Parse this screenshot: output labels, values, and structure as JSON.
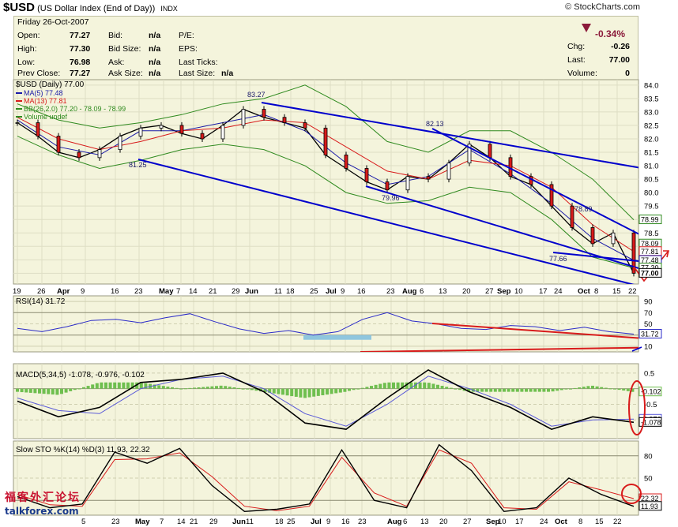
{
  "header": {
    "symbol": "$USD",
    "name": "(US Dollar Index (End of Day))",
    "exchange": "INDX",
    "brand": "© StockCharts.com"
  },
  "quote": {
    "date": "Friday  26-Oct-2007",
    "open_label": "Open:",
    "open": "77.27",
    "high_label": "High:",
    "high": "77.30",
    "low_label": "Low:",
    "low": "76.98",
    "prev_label": "Prev Close:",
    "prev": "77.27",
    "bid_label": "Bid:",
    "bid": "n/a",
    "bidsize_label": "Bid Size:",
    "bidsize": "n/a",
    "ask_label": "Ask:",
    "ask": "n/a",
    "asksize_label": "Ask Size:",
    "asksize": "n/a",
    "pe_label": "P/E:",
    "eps_label": "EPS:",
    "lastticks_label": "Last Ticks:",
    "lastsize_label": "Last Size:",
    "lastsize": "n/a",
    "pct": "-0.34%",
    "chg_label": "Chg:",
    "chg": "-0.26",
    "last_label": "Last:",
    "last": "77.00",
    "vol_label": "Volume:",
    "vol": "0"
  },
  "watermark": {
    "line1": "福客外汇论坛",
    "line2": "talkforex.com"
  },
  "colors": {
    "panel_bg": "#f4f4dc",
    "price_line": "#000000",
    "ma5": "#1a1aa8",
    "ma13": "#d81b1b",
    "bband": "#2f8a1f",
    "trendline": "#0000cc",
    "annot": "#d81b1b",
    "rsi_line": "#2a2ac8",
    "macd": "#000000",
    "signal": "#5a5ad8",
    "hist": "#6fbf4f",
    "stoch_k": "#000000",
    "stoch_d": "#d81b1b"
  },
  "chart_data": [
    {
      "type": "line",
      "title": "$USD (Daily) 77.00",
      "ylim": [
        76.6,
        84.2
      ],
      "y_ticks": [
        "84.0",
        "83.5",
        "83.0",
        "82.5",
        "82.0",
        "81.5",
        "81.0",
        "80.5",
        "80.0",
        "79.5",
        "79.0",
        "78.5",
        "78.0",
        "77.5",
        "77.0"
      ],
      "x_ticks": [
        "19",
        "26",
        "Apr",
        "9",
        "16",
        "23",
        "May",
        "7",
        "14",
        "21",
        "29",
        "Jun",
        "11",
        "18",
        "25",
        "Jul",
        "9",
        "16",
        "23",
        "Aug",
        "6",
        "13",
        "20",
        "27",
        "Sep",
        "10",
        "17",
        "24",
        "Oct",
        "8",
        "15",
        "22"
      ],
      "legend": [
        "MA(5) 77.48",
        "MA(13) 77.81",
        "BB(26,2.0) 77.20 - 78.09 - 78.99",
        "Volume undef"
      ],
      "annotations": [
        "83.27",
        "82.13",
        "81.25",
        "79.96",
        "78.89",
        "77.66"
      ],
      "series": [
        {
          "name": "$USD",
          "x": [
            0,
            5,
            10,
            15,
            20,
            25,
            30,
            35,
            40,
            45,
            50,
            55,
            60,
            65,
            70,
            75,
            80,
            85,
            90,
            95,
            100,
            105,
            110,
            115,
            120,
            125,
            130,
            135,
            140,
            145,
            150
          ],
          "values": [
            82.6,
            82.1,
            81.5,
            81.3,
            81.6,
            82.1,
            82.4,
            82.5,
            82.2,
            82.0,
            82.5,
            83.1,
            82.8,
            82.6,
            82.4,
            81.4,
            80.9,
            80.4,
            80.1,
            80.6,
            80.5,
            81.1,
            81.8,
            81.3,
            80.6,
            80.3,
            79.5,
            78.7,
            78.1,
            78.5,
            77.0
          ]
        },
        {
          "name": "MA(5)",
          "x": [
            0,
            10,
            20,
            30,
            40,
            50,
            60,
            70,
            80,
            90,
            100,
            110,
            120,
            130,
            140,
            150
          ],
          "values": [
            82.7,
            81.7,
            81.4,
            82.3,
            82.3,
            82.6,
            82.9,
            82.3,
            81.1,
            80.3,
            80.6,
            81.6,
            80.7,
            79.6,
            78.3,
            77.48
          ]
        },
        {
          "name": "MA(13)",
          "x": [
            0,
            10,
            20,
            30,
            40,
            50,
            60,
            70,
            80,
            90,
            100,
            110,
            120,
            130,
            140,
            150
          ],
          "values": [
            82.8,
            82.0,
            81.6,
            81.9,
            82.3,
            82.4,
            82.7,
            82.6,
            81.7,
            80.8,
            80.5,
            81.2,
            81.0,
            80.2,
            78.8,
            77.81
          ]
        },
        {
          "name": "BB upper",
          "x": [
            0,
            10,
            20,
            30,
            40,
            50,
            60,
            70,
            80,
            90,
            100,
            110,
            120,
            130,
            140,
            150
          ],
          "values": [
            83.3,
            82.7,
            82.4,
            82.6,
            82.9,
            83.3,
            83.5,
            84.0,
            83.2,
            81.9,
            81.5,
            82.3,
            82.3,
            81.5,
            80.5,
            78.99
          ]
        },
        {
          "name": "BB lower",
          "x": [
            0,
            10,
            20,
            30,
            40,
            50,
            60,
            70,
            80,
            90,
            100,
            110,
            120,
            130,
            140,
            150
          ],
          "values": [
            82.1,
            81.4,
            80.9,
            81.2,
            81.6,
            81.8,
            81.6,
            81.0,
            80.0,
            79.6,
            79.7,
            80.2,
            80.0,
            79.0,
            77.6,
            77.2
          ]
        }
      ]
    },
    {
      "type": "line",
      "title": "RSI(14) 31.72",
      "ylim": [
        0,
        100
      ],
      "y_ticks": [
        "90",
        "70",
        "50",
        "30",
        "10"
      ],
      "series": [
        {
          "name": "RSI(14)",
          "values": [
            42,
            36,
            45,
            56,
            58,
            52,
            61,
            68,
            54,
            41,
            33,
            38,
            30,
            36,
            58,
            70,
            55,
            50,
            42,
            40,
            47,
            45,
            38,
            44,
            36,
            31.72
          ]
        }
      ]
    },
    {
      "type": "line",
      "title": "MACD(5,34,5) -1.078, -0.976, -0.102",
      "ylim": [
        -1.6,
        0.8
      ],
      "y_ticks": [
        "0.5",
        "-0.5",
        "-1.0"
      ],
      "series": [
        {
          "name": "MACD",
          "values": [
            -0.4,
            -0.9,
            -0.6,
            0.2,
            0.3,
            0.5,
            -0.1,
            -1.1,
            -1.3,
            -0.3,
            0.6,
            -0.1,
            -0.6,
            -1.3,
            -0.9,
            -1.078
          ]
        },
        {
          "name": "Signal",
          "values": [
            -0.3,
            -0.7,
            -0.8,
            0.0,
            0.3,
            0.4,
            0.0,
            -0.8,
            -1.2,
            -0.5,
            0.4,
            0.0,
            -0.5,
            -1.2,
            -1.0,
            -0.976
          ]
        },
        {
          "name": "Histogram",
          "values": [
            -0.1,
            -0.2,
            0.2,
            0.2,
            0.0,
            0.1,
            -0.1,
            -0.3,
            -0.1,
            0.2,
            0.2,
            -0.1,
            -0.1,
            -0.1,
            0.1,
            -0.102
          ]
        }
      ]
    },
    {
      "type": "line",
      "title": "Slow STO %K(14) %D(3) 11.93, 22.32",
      "ylim": [
        0,
        100
      ],
      "y_ticks": [
        "80",
        "50",
        "20"
      ],
      "series": [
        {
          "name": "%K",
          "values": [
            25,
            10,
            15,
            85,
            70,
            90,
            40,
            5,
            8,
            15,
            88,
            20,
            10,
            95,
            60,
            5,
            10,
            50,
            28,
            11.93
          ]
        },
        {
          "name": "%D",
          "values": [
            28,
            14,
            12,
            75,
            76,
            84,
            52,
            12,
            6,
            12,
            78,
            30,
            12,
            88,
            70,
            10,
            8,
            45,
            34,
            22.32
          ]
        }
      ]
    }
  ],
  "right_labels": {
    "bb_upper": "78.99",
    "ma13": "78.09",
    "ma5": "77.81",
    "m1": "77.48",
    "m2": "77.20",
    "last": "77.00",
    "rsi": "31.72",
    "macd_h": "-0.102",
    "macd_s": "-0.976",
    "macd": "-1.078",
    "sto_d": "22.32",
    "sto_k": "11.93"
  }
}
